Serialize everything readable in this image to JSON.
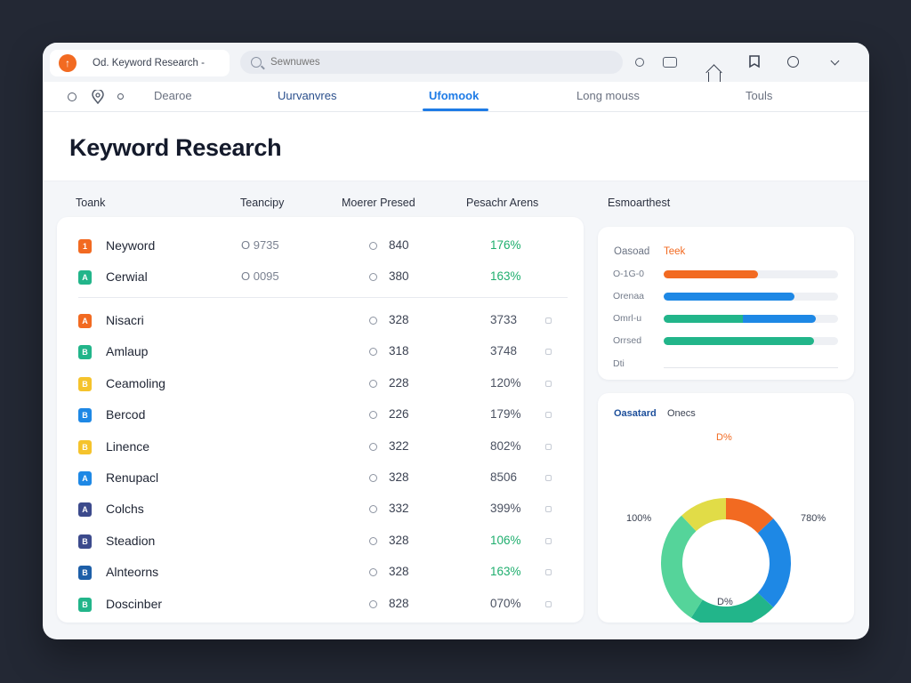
{
  "topbar": {
    "brand_icon": "upload-arrow-icon",
    "tab_title": "Od.  Keyword Research -",
    "search_placeholder": "Sewnuwes",
    "icons": [
      "circle-icon",
      "card-icon",
      "home-icon",
      "bookmark-icon",
      "bulb-icon",
      "chevron-down-icon"
    ]
  },
  "nav": {
    "icons": [
      "circle-icon",
      "location-icon",
      "circle-icon"
    ],
    "tabs": [
      {
        "label": "Dearoe",
        "active": false
      },
      {
        "label": "Uurvanvres",
        "active": false
      },
      {
        "label": "Ufomook",
        "active": true
      },
      {
        "label": "Long mouss",
        "active": false
      },
      {
        "label": "Touls",
        "active": false
      }
    ]
  },
  "page": {
    "title": "Keyword Research"
  },
  "columns": {
    "c1": "Toank",
    "c2": "Teancipy",
    "c3": "Moerer Presed",
    "c4": "Pesachr Arens",
    "c5": "Esmoarthest"
  },
  "table": {
    "top_rows": [
      {
        "badge": "1",
        "color": "#f26a21",
        "keyword": "Neyword",
        "vol": "O 9735",
        "val": "840",
        "pct": "176%",
        "pct_green": true
      },
      {
        "badge": "A",
        "color": "#22b58a",
        "keyword": "Cerwial",
        "vol": "O 0095",
        "val": "380",
        "pct": "163%",
        "pct_green": true
      }
    ],
    "rows": [
      {
        "badge": "A",
        "color": "#f26a21",
        "keyword": "Nisacri",
        "val": "328",
        "pct": "3733",
        "pct_green": false
      },
      {
        "badge": "B",
        "color": "#22b58a",
        "keyword": "Amlaup",
        "val": "318",
        "pct": "3748",
        "pct_green": false
      },
      {
        "badge": "B",
        "color": "#f5c32c",
        "keyword": "Ceamoling",
        "val": "228",
        "pct": "120%",
        "pct_green": false
      },
      {
        "badge": "B",
        "color": "#1e88e5",
        "keyword": "Bercod",
        "val": "226",
        "pct": "179%",
        "pct_green": false
      },
      {
        "badge": "B",
        "color": "#f5c32c",
        "keyword": "Linence",
        "val": "322",
        "pct": "802%",
        "pct_green": false
      },
      {
        "badge": "A",
        "color": "#1e88e5",
        "keyword": "Renupacl",
        "val": "328",
        "pct": "8506",
        "pct_green": false
      },
      {
        "badge": "A",
        "color": "#3c4a8c",
        "keyword": "Colchs",
        "val": "332",
        "pct": "399%",
        "pct_green": false
      },
      {
        "badge": "B",
        "color": "#3c4a8c",
        "keyword": "Steadion",
        "val": "328",
        "pct": "106%",
        "pct_green": true
      },
      {
        "badge": "B",
        "color": "#1d5fa8",
        "keyword": "Alnteorns",
        "val": "328",
        "pct": "163%",
        "pct_green": true
      },
      {
        "badge": "B",
        "color": "#22b58a",
        "keyword": "Doscinber",
        "val": "828",
        "pct": "070%",
        "pct_green": false
      }
    ]
  },
  "bars_panel": {
    "tab_a": "Oasoad",
    "tab_b": "Teek",
    "bars": [
      {
        "label": "O-1G-0",
        "value": 0.54,
        "colors": [
          "#f26a21"
        ]
      },
      {
        "label": "Orenaa",
        "value": 0.75,
        "colors": [
          "#1e88e5"
        ]
      },
      {
        "label": "Omrl-u",
        "value": 0.87,
        "colors": [
          "#22b58a",
          "#1e88e5"
        ]
      },
      {
        "label": "Orrsed",
        "value": 0.86,
        "colors": [
          "#22b58a"
        ]
      }
    ],
    "axis_label": "Dti"
  },
  "donut_panel": {
    "tab_a": "Oasatard",
    "tab_b": "Onecs",
    "label_top": "D%",
    "label_left": "100%",
    "label_right": "780%",
    "label_bottom": "D%",
    "segments": [
      {
        "value": 13,
        "color": "#f26a21"
      },
      {
        "value": 24,
        "color": "#1e88e5"
      },
      {
        "value": 22,
        "color": "#22b58a"
      },
      {
        "value": 29,
        "color": "#55d49a"
      },
      {
        "value": 12,
        "color": "#e1dc47"
      }
    ]
  }
}
